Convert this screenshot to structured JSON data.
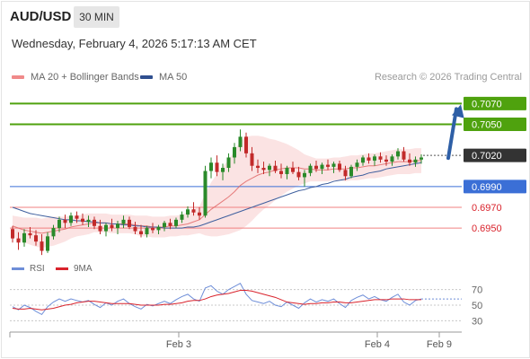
{
  "header": {
    "symbol": "AUD/USD",
    "timeframe": "30 MIN",
    "datetime": "Wednesday, February 4, 2026 5:17:13 AM CET"
  },
  "legend": {
    "ma20_label": "MA 20 + Bollinger Bands",
    "ma50_label": "MA 50",
    "credit": "Research © 2026 Trading Central"
  },
  "rsi_legend": {
    "rsi_label": "RSI",
    "ma9_label": "9MA"
  },
  "colors": {
    "bull": "#2a8a2a",
    "bear": "#c22a2a",
    "ma20": "#e06060",
    "band_fill": "#fbe0e0",
    "ma50": "#3e5f9e",
    "target": "#4fa20e",
    "pivot": "#3b6fd6",
    "support": "#f08080",
    "arrow": "#2e5fa6",
    "current_label": "#333333",
    "rsi": "#6e8ed8",
    "rsi_ma": "#d9232c"
  },
  "chart_data": [
    {
      "type": "candlestick",
      "title": "",
      "x_labels": [
        "Feb 3",
        "Feb 4",
        "Feb 9"
      ],
      "ylim": [
        0.6925,
        0.7085
      ],
      "levels": [
        {
          "value": 0.707,
          "label": "0.7070",
          "kind": "target"
        },
        {
          "value": 0.705,
          "label": "0.7050",
          "kind": "target"
        },
        {
          "value": 0.702,
          "label": "0.7020",
          "kind": "current"
        },
        {
          "value": 0.699,
          "label": "0.6990",
          "kind": "pivot"
        },
        {
          "value": 0.697,
          "label": "0.6970",
          "kind": "support"
        },
        {
          "value": 0.695,
          "label": "0.6950",
          "kind": "support"
        }
      ],
      "candles": [
        [
          0.6949,
          0.6952,
          0.6936,
          0.694
        ],
        [
          0.694,
          0.6946,
          0.6929,
          0.6936
        ],
        [
          0.6936,
          0.6949,
          0.6932,
          0.6945
        ],
        [
          0.6945,
          0.6951,
          0.694,
          0.6943
        ],
        [
          0.6943,
          0.6948,
          0.6933,
          0.6937
        ],
        [
          0.6937,
          0.6944,
          0.6924,
          0.6928
        ],
        [
          0.6928,
          0.6946,
          0.6926,
          0.6942
        ],
        [
          0.6942,
          0.6953,
          0.6939,
          0.695
        ],
        [
          0.695,
          0.6961,
          0.6946,
          0.6958
        ],
        [
          0.6958,
          0.6963,
          0.695,
          0.6955
        ],
        [
          0.6955,
          0.6965,
          0.6952,
          0.6962
        ],
        [
          0.6962,
          0.6966,
          0.6955,
          0.6959
        ],
        [
          0.6959,
          0.6964,
          0.6953,
          0.6956
        ],
        [
          0.6956,
          0.6962,
          0.6951,
          0.6958
        ],
        [
          0.6958,
          0.6961,
          0.6949,
          0.6952
        ],
        [
          0.6952,
          0.6958,
          0.6944,
          0.6947
        ],
        [
          0.6947,
          0.6955,
          0.6942,
          0.6953
        ],
        [
          0.6953,
          0.6959,
          0.6947,
          0.695
        ],
        [
          0.695,
          0.6957,
          0.6944,
          0.6954
        ],
        [
          0.6954,
          0.6962,
          0.695,
          0.6958
        ],
        [
          0.6958,
          0.6961,
          0.6949,
          0.6951
        ],
        [
          0.6951,
          0.6956,
          0.6944,
          0.6947
        ],
        [
          0.6947,
          0.6953,
          0.6941,
          0.6944
        ],
        [
          0.6944,
          0.6952,
          0.6941,
          0.695
        ],
        [
          0.695,
          0.6955,
          0.6945,
          0.6948
        ],
        [
          0.6948,
          0.6953,
          0.6944,
          0.6951
        ],
        [
          0.6951,
          0.6957,
          0.6947,
          0.6955
        ],
        [
          0.6955,
          0.6959,
          0.6949,
          0.6952
        ],
        [
          0.6952,
          0.696,
          0.695,
          0.6958
        ],
        [
          0.6958,
          0.6966,
          0.6955,
          0.6963
        ],
        [
          0.6963,
          0.6971,
          0.696,
          0.6968
        ],
        [
          0.6968,
          0.6975,
          0.6962,
          0.6965
        ],
        [
          0.6965,
          0.697,
          0.6958,
          0.6962
        ],
        [
          0.6962,
          0.701,
          0.696,
          0.7005
        ],
        [
          0.7005,
          0.7018,
          0.6998,
          0.7013
        ],
        [
          0.7013,
          0.702,
          0.7,
          0.7004
        ],
        [
          0.7004,
          0.7012,
          0.6996,
          0.7008
        ],
        [
          0.7008,
          0.7022,
          0.7004,
          0.7018
        ],
        [
          0.7018,
          0.7032,
          0.7012,
          0.7028
        ],
        [
          0.7028,
          0.7045,
          0.7024,
          0.7038
        ],
        [
          0.7038,
          0.7042,
          0.7018,
          0.7022
        ],
        [
          0.7022,
          0.7028,
          0.7005,
          0.701
        ],
        [
          0.701,
          0.7016,
          0.7003,
          0.7008
        ],
        [
          0.7008,
          0.7014,
          0.7002,
          0.7006
        ],
        [
          0.7006,
          0.7012,
          0.7,
          0.701
        ],
        [
          0.701,
          0.7015,
          0.7003,
          0.7005
        ],
        [
          0.7005,
          0.7012,
          0.6998,
          0.7002
        ],
        [
          0.7002,
          0.701,
          0.6997,
          0.7008
        ],
        [
          0.7008,
          0.7014,
          0.7002,
          0.7004
        ],
        [
          0.7004,
          0.7009,
          0.6996,
          0.6999
        ],
        [
          0.6999,
          0.7006,
          0.699,
          0.7003
        ],
        [
          0.7003,
          0.7012,
          0.7,
          0.701
        ],
        [
          0.701,
          0.7015,
          0.7004,
          0.7007
        ],
        [
          0.7007,
          0.7013,
          0.7002,
          0.7011
        ],
        [
          0.7011,
          0.7016,
          0.7006,
          0.7009
        ],
        [
          0.7009,
          0.7014,
          0.7003,
          0.7012
        ],
        [
          0.7012,
          0.7015,
          0.7004,
          0.7006
        ],
        [
          0.7006,
          0.701,
          0.6996,
          0.7
        ],
        [
          0.7,
          0.7011,
          0.6998,
          0.7009
        ],
        [
          0.7009,
          0.7016,
          0.7005,
          0.7013
        ],
        [
          0.7013,
          0.702,
          0.701,
          0.7018
        ],
        [
          0.7018,
          0.7022,
          0.7012,
          0.7015
        ],
        [
          0.7015,
          0.7021,
          0.701,
          0.7019
        ],
        [
          0.7019,
          0.7023,
          0.7013,
          0.7016
        ],
        [
          0.7016,
          0.702,
          0.701,
          0.7014
        ],
        [
          0.7014,
          0.7021,
          0.701,
          0.7019
        ],
        [
          0.7019,
          0.7027,
          0.7016,
          0.7024
        ],
        [
          0.7024,
          0.7028,
          0.7014,
          0.7016
        ],
        [
          0.7016,
          0.7022,
          0.701,
          0.7013
        ],
        [
          0.7013,
          0.7019,
          0.7009,
          0.7016
        ],
        [
          0.7016,
          0.7021,
          0.7012,
          0.7018
        ]
      ],
      "ma20": [
        0.6952,
        0.695,
        0.6948,
        0.6947,
        0.6946,
        0.6945,
        0.6946,
        0.6947,
        0.6948,
        0.6949,
        0.6951,
        0.6952,
        0.6953,
        0.6954,
        0.6955,
        0.6955,
        0.6955,
        0.6954,
        0.6954,
        0.6954,
        0.6954,
        0.6953,
        0.6952,
        0.6952,
        0.6951,
        0.6951,
        0.6951,
        0.6952,
        0.6952,
        0.6953,
        0.6954,
        0.6956,
        0.6958,
        0.6963,
        0.6968,
        0.6972,
        0.6976,
        0.698,
        0.6985,
        0.6991,
        0.6995,
        0.6998,
        0.7001,
        0.7003,
        0.7004,
        0.7006,
        0.7007,
        0.7008,
        0.7008,
        0.7008,
        0.7007,
        0.7007,
        0.7006,
        0.7006,
        0.7006,
        0.7007,
        0.7007,
        0.7007,
        0.7008,
        0.7008,
        0.7009,
        0.701,
        0.701,
        0.7011,
        0.7012,
        0.7013,
        0.7014,
        0.7014,
        0.7014,
        0.7015,
        0.7015
      ],
      "bb_width": [
        0.001,
        0.0011,
        0.0012,
        0.0013,
        0.0014,
        0.0014,
        0.0014,
        0.0014,
        0.0013,
        0.0012,
        0.0011,
        0.001,
        0.001,
        0.001,
        0.0009,
        0.0009,
        0.0009,
        0.0009,
        0.0009,
        0.0009,
        0.0009,
        0.0009,
        0.001,
        0.001,
        0.001,
        0.001,
        0.001,
        0.001,
        0.001,
        0.001,
        0.0011,
        0.0012,
        0.0013,
        0.002,
        0.0026,
        0.003,
        0.0033,
        0.0036,
        0.0039,
        0.0043,
        0.0043,
        0.0041,
        0.0038,
        0.0035,
        0.0032,
        0.0029,
        0.0026,
        0.0023,
        0.002,
        0.0017,
        0.0014,
        0.0012,
        0.0011,
        0.0011,
        0.0011,
        0.0011,
        0.0011,
        0.0012,
        0.0012,
        0.0012,
        0.0012,
        0.0012,
        0.0012,
        0.0012,
        0.0012,
        0.0012,
        0.0012,
        0.0012,
        0.0012,
        0.0012,
        0.0012
      ],
      "ma50": [
        0.697,
        0.6968,
        0.6966,
        0.6964,
        0.6963,
        0.6962,
        0.6961,
        0.696,
        0.6959,
        0.6958,
        0.6958,
        0.6957,
        0.6957,
        0.6956,
        0.6956,
        0.6955,
        0.6955,
        0.6954,
        0.6954,
        0.6953,
        0.6953,
        0.6952,
        0.6952,
        0.6951,
        0.6951,
        0.6951,
        0.695,
        0.695,
        0.695,
        0.695,
        0.6951,
        0.6951,
        0.6952,
        0.6954,
        0.6956,
        0.6958,
        0.696,
        0.6962,
        0.6964,
        0.6966,
        0.6968,
        0.697,
        0.6972,
        0.6974,
        0.6976,
        0.6978,
        0.698,
        0.6982,
        0.6984,
        0.6986,
        0.6987,
        0.6989,
        0.699,
        0.6992,
        0.6993,
        0.6995,
        0.6996,
        0.6997,
        0.6999,
        0.7,
        0.7001,
        0.7003,
        0.7004,
        0.7005,
        0.7007,
        0.7008,
        0.7009,
        0.701,
        0.7011,
        0.7012,
        0.7013
      ],
      "forecast": [
        0.702,
        0.707
      ]
    },
    {
      "type": "line",
      "title": "",
      "ylim": [
        20,
        80
      ],
      "y_ticks": [
        70,
        50,
        30
      ],
      "series": [
        {
          "name": "RSI",
          "values": [
            48,
            44,
            50,
            47,
            42,
            38,
            48,
            54,
            58,
            55,
            58,
            56,
            54,
            56,
            51,
            47,
            53,
            50,
            55,
            58,
            52,
            48,
            45,
            51,
            49,
            52,
            55,
            52,
            57,
            61,
            64,
            58,
            55,
            72,
            75,
            68,
            64,
            70,
            74,
            78,
            64,
            56,
            54,
            52,
            55,
            50,
            48,
            54,
            50,
            46,
            53,
            58,
            54,
            57,
            55,
            58,
            52,
            47,
            56,
            60,
            63,
            58,
            61,
            57,
            55,
            60,
            64,
            54,
            50,
            56,
            58
          ]
        },
        {
          "name": "9MA",
          "values": [
            46,
            45,
            45,
            46,
            45,
            44,
            45,
            46,
            48,
            50,
            51,
            53,
            54,
            55,
            55,
            54,
            53,
            52,
            52,
            52,
            52,
            51,
            50,
            50,
            50,
            50,
            51,
            51,
            52,
            53,
            55,
            56,
            56,
            58,
            61,
            63,
            64,
            65,
            67,
            69,
            69,
            68,
            66,
            64,
            62,
            60,
            57,
            54,
            53,
            52,
            51,
            52,
            52,
            53,
            53,
            54,
            54,
            53,
            53,
            54,
            55,
            56,
            57,
            57,
            57,
            58,
            58,
            58,
            57,
            57,
            57
          ]
        }
      ]
    }
  ]
}
